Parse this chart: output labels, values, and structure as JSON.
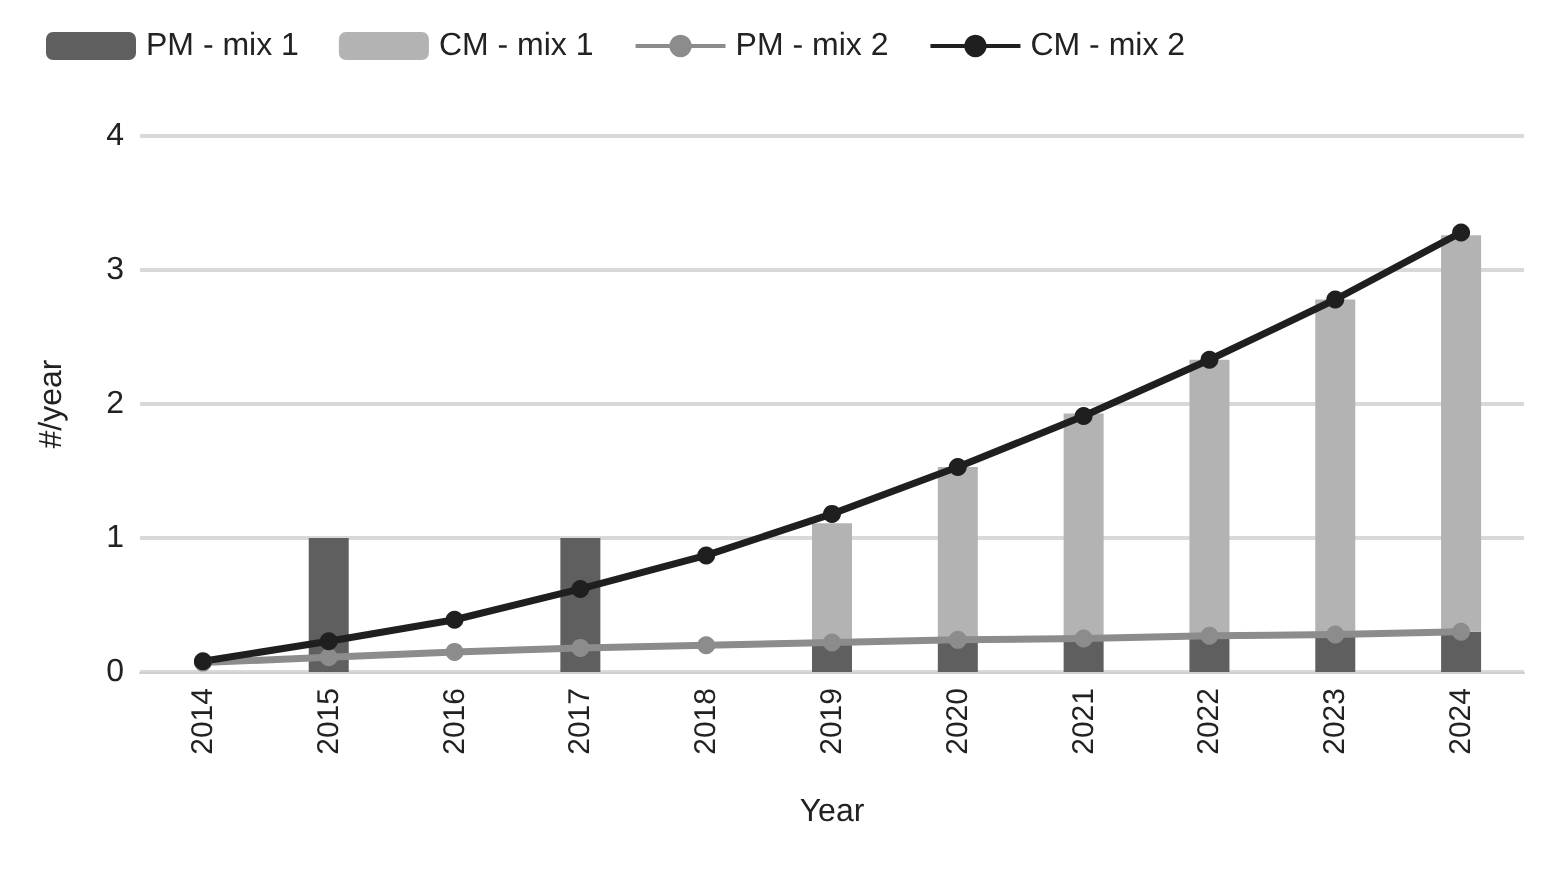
{
  "chart_data": {
    "type": "bar",
    "stacked": true,
    "xlabel": "Year",
    "ylabel": "#/year",
    "categories": [
      "2014",
      "2015",
      "2016",
      "2017",
      "2018",
      "2019",
      "2020",
      "2021",
      "2022",
      "2023",
      "2024"
    ],
    "ylim": [
      0,
      4
    ],
    "yticks": [
      0,
      1,
      2,
      3,
      4
    ],
    "grid": "y",
    "legend": "top",
    "series": [
      {
        "name": "PM - mix 1",
        "color": "#5f5f5f",
        "values": [
          null,
          1,
          null,
          1,
          null,
          0.22,
          0.24,
          0.25,
          0.27,
          0.28,
          0.3
        ]
      },
      {
        "name": "CM - mix 1",
        "color": "#b3b3b3",
        "values": [
          null,
          null,
          null,
          null,
          null,
          0.89,
          1.29,
          1.68,
          2.06,
          2.5,
          2.96
        ]
      },
      {
        "name": "PM - mix 2",
        "type": "line",
        "color": "#8c8c8c",
        "marker": "circle",
        "values": [
          0.07,
          0.11,
          0.15,
          0.18,
          0.2,
          0.22,
          0.24,
          0.25,
          0.27,
          0.28,
          0.3
        ]
      },
      {
        "name": "CM - mix 2",
        "type": "line",
        "color": "#1f1f1f",
        "marker": "circle",
        "values": [
          0.08,
          0.23,
          0.39,
          0.62,
          0.87,
          1.18,
          1.53,
          1.91,
          2.33,
          2.78,
          3.28
        ]
      }
    ]
  }
}
